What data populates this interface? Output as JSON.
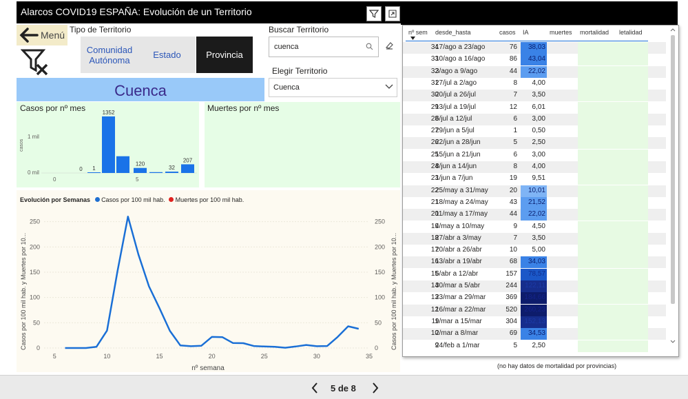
{
  "title": "Alarcos COVID19 ESPAÑA: Evolución de un Territorio",
  "toolbar": {
    "filter_icon": "filter-icon",
    "expand_icon": "focus-mode-icon"
  },
  "menu": {
    "label": "Menú"
  },
  "territory_type": {
    "label": "Tipo de Territorio",
    "options": [
      "Comunidad Autónoma",
      "Estado",
      "Provincia"
    ],
    "selected": "Provincia"
  },
  "search": {
    "label": "Buscar Territorio",
    "value": "cuenca"
  },
  "choose": {
    "label": "Elegir Territorio",
    "value": "Cuenca"
  },
  "territory_name": "Cuenca",
  "cases_month": {
    "title": "Casos por nº mes",
    "y_label": "casos",
    "y_ticks": [
      "1 mil",
      "0 mil"
    ],
    "x_ticks": [
      "0",
      "5"
    ]
  },
  "deaths_month": {
    "title": "Muertes por nº mes"
  },
  "evolution": {
    "title": "Evolución por Semanas",
    "legend": [
      {
        "label": "Casos por 100 mil hab.",
        "color": "#1f6fd1"
      },
      {
        "label": "Muertes por 100 mil hab.",
        "color": "#e0221f"
      }
    ],
    "y_label_left": "Casos por 100 mil hab. y Muertes por 10...",
    "y_label_right": "Casos por 100 mil hab. y Muertes por 10...",
    "x_label": "nº semana"
  },
  "table": {
    "headers": [
      "nº sem",
      "desde_hasta",
      "casos",
      "IA",
      "muertes",
      "mortalidad",
      "letalidad"
    ],
    "rows": [
      {
        "sem": "34",
        "range": "17/ago a 23/ago",
        "casos": "76",
        "ia": "38,03"
      },
      {
        "sem": "33",
        "range": "10/ago a 16/ago",
        "casos": "86",
        "ia": "43,04"
      },
      {
        "sem": "32",
        "range": "3/ago a 9/ago",
        "casos": "44",
        "ia": "22,02"
      },
      {
        "sem": "31",
        "range": "27/jul a 2/ago",
        "casos": "8",
        "ia": "4,00"
      },
      {
        "sem": "30",
        "range": "20/jul a 26/jul",
        "casos": "7",
        "ia": "3,50"
      },
      {
        "sem": "29",
        "range": "13/jul a 19/jul",
        "casos": "12",
        "ia": "6,01"
      },
      {
        "sem": "28",
        "range": "6/jul a 12/jul",
        "casos": "6",
        "ia": "3,00"
      },
      {
        "sem": "27",
        "range": "29/jun a 5/jul",
        "casos": "1",
        "ia": "0,50"
      },
      {
        "sem": "26",
        "range": "22/jun a 28/jun",
        "casos": "5",
        "ia": "2,50"
      },
      {
        "sem": "25",
        "range": "15/jun a 21/jun",
        "casos": "6",
        "ia": "3,00"
      },
      {
        "sem": "24",
        "range": "8/jun a 14/jun",
        "casos": "8",
        "ia": "4,00"
      },
      {
        "sem": "23",
        "range": "1/jun a 7/jun",
        "casos": "19",
        "ia": "9,51"
      },
      {
        "sem": "22",
        "range": "25/may a 31/may",
        "casos": "20",
        "ia": "10,01"
      },
      {
        "sem": "21",
        "range": "18/may a 24/may",
        "casos": "43",
        "ia": "21,52"
      },
      {
        "sem": "20",
        "range": "11/may a 17/may",
        "casos": "44",
        "ia": "22,02"
      },
      {
        "sem": "19",
        "range": "4/may a 10/may",
        "casos": "9",
        "ia": "4,50"
      },
      {
        "sem": "18",
        "range": "27/abr a 3/may",
        "casos": "7",
        "ia": "3,50"
      },
      {
        "sem": "17",
        "range": "20/abr a 26/abr",
        "casos": "10",
        "ia": "5,00"
      },
      {
        "sem": "16",
        "range": "13/abr a 19/abr",
        "casos": "68",
        "ia": "34,03"
      },
      {
        "sem": "15",
        "range": "6/abr a 12/abr",
        "casos": "157",
        "ia": "78,57"
      },
      {
        "sem": "14",
        "range": "30/mar a 5/abr",
        "casos": "244",
        "ia": "122,11"
      },
      {
        "sem": "13",
        "range": "23/mar a 29/mar",
        "casos": "369",
        "ia": "184,66"
      },
      {
        "sem": "12",
        "range": "16/mar a 22/mar",
        "casos": "520",
        "ia": "260,23"
      },
      {
        "sem": "11",
        "range": "9/mar a 15/mar",
        "casos": "304",
        "ia": "152,13"
      },
      {
        "sem": "10",
        "range": "2/mar a 8/mar",
        "casos": "69",
        "ia": "34,53"
      },
      {
        "sem": "9",
        "range": "24/feb a 1/mar",
        "casos": "5",
        "ia": "2,50"
      }
    ]
  },
  "note": "(no hay datos de mortalidad por provincias)",
  "pager": {
    "label": "5 de 8"
  },
  "chart_data": [
    {
      "type": "bar",
      "title": "Casos por nº mes",
      "ylabel": "casos",
      "x": [
        1,
        2,
        3,
        4,
        5,
        6,
        7,
        8
      ],
      "values": [
        0,
        1,
        1352,
        400,
        120,
        20,
        32,
        207
      ],
      "data_labels": [
        "0",
        "1",
        "1352",
        "",
        "120",
        "",
        "32",
        "207"
      ],
      "ylim": [
        0,
        1400
      ],
      "color": "#1a73e8"
    },
    {
      "type": "line",
      "title": "Evolución por Semanas",
      "xlabel": "nº semana",
      "xlim": [
        4,
        35
      ],
      "ylim": [
        0,
        270
      ],
      "x_ticks": [
        5,
        10,
        15,
        20,
        25,
        30,
        35
      ],
      "y_ticks": [
        0,
        50,
        100,
        150,
        200,
        250
      ],
      "series": [
        {
          "name": "Casos por 100 mil hab.",
          "color": "#1a6fd6",
          "x": [
            6,
            7,
            8,
            9,
            10,
            11,
            12,
            13,
            14,
            15,
            16,
            17,
            18,
            19,
            20,
            21,
            22,
            23,
            24,
            25,
            26,
            27,
            28,
            29,
            30,
            31,
            32,
            33,
            34
          ],
          "y": [
            0,
            0,
            0,
            2.5,
            34.5,
            152,
            260,
            185,
            122,
            79,
            34,
            5,
            3.5,
            4.5,
            22,
            21.5,
            10,
            9.5,
            4,
            3,
            2.5,
            0.5,
            3,
            6,
            3.5,
            4,
            22,
            43,
            38
          ]
        },
        {
          "name": "Muertes por 100 mil hab.",
          "color": "#e0221f",
          "x": [],
          "y": []
        }
      ]
    }
  ]
}
